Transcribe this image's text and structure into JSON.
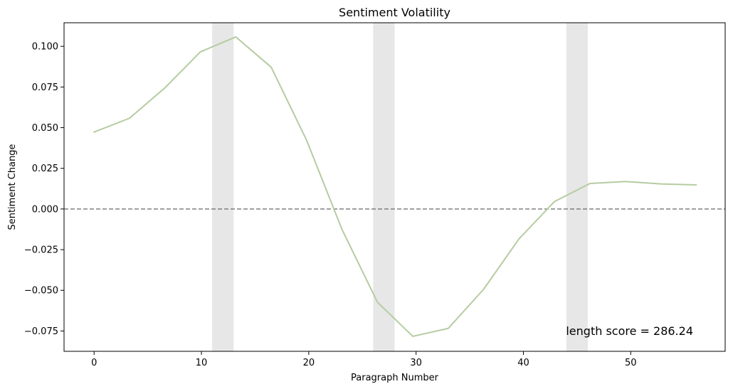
{
  "chart_data": {
    "type": "line",
    "title": "Sentiment Volatility",
    "xlabel": "Paragraph Number",
    "ylabel": "Sentiment Change",
    "xlim": [
      -2.8,
      58.8
    ],
    "ylim": [
      -0.0875,
      0.1145
    ],
    "xticks": [
      0,
      10,
      20,
      30,
      40,
      50
    ],
    "xtick_labels": [
      "0",
      "10",
      "20",
      "30",
      "40",
      "50"
    ],
    "yticks": [
      -0.075,
      -0.05,
      -0.025,
      0.0,
      0.025,
      0.05,
      0.075,
      0.1
    ],
    "ytick_labels": [
      "−0.075",
      "−0.050",
      "−0.025",
      "0.000",
      "0.025",
      "0.050",
      "0.075",
      "0.100"
    ],
    "grid": false,
    "series": [
      {
        "color": "#b5cca1",
        "x": [
          0,
          3.3,
          6.6,
          9.9,
          13.2,
          16.5,
          19.8,
          23.1,
          26.4,
          29.7,
          33.0,
          36.3,
          39.6,
          42.9,
          46.2,
          49.5,
          52.8,
          56.1
        ],
        "y": [
          0.0473,
          0.0558,
          0.0745,
          0.0966,
          0.1058,
          0.0872,
          0.0423,
          -0.0126,
          -0.0573,
          -0.0783,
          -0.0734,
          -0.0493,
          -0.0183,
          0.0046,
          0.0157,
          0.0169,
          0.0154,
          0.0148
        ]
      }
    ],
    "reference_line": {
      "y": 0.0,
      "color": "#808080",
      "style": "dashed"
    },
    "shaded_bands": [
      {
        "x_start": 11,
        "x_end": 13,
        "color": "#e7e7e7"
      },
      {
        "x_start": 26,
        "x_end": 28,
        "color": "#e7e7e7"
      },
      {
        "x_start": 44,
        "x_end": 46,
        "color": "#e7e7e7"
      }
    ],
    "annotation": {
      "text": "length score = 286.24",
      "placement": "bottom-right"
    }
  }
}
